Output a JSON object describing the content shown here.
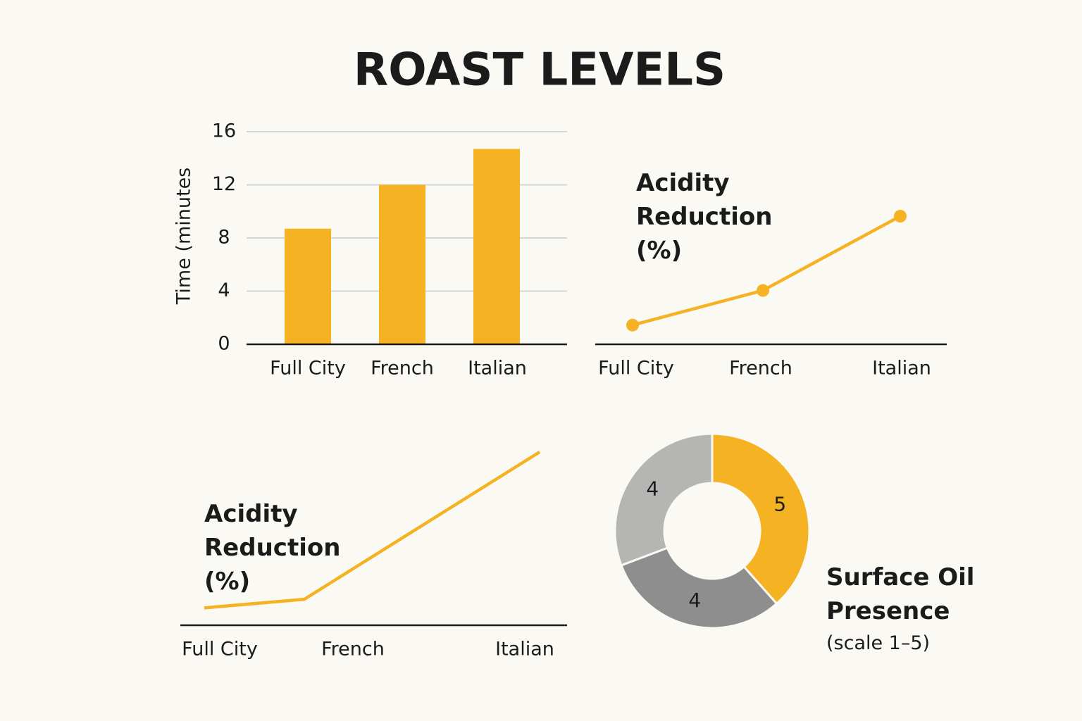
{
  "title": "ROAST LEVELS",
  "chart_data": [
    {
      "type": "bar",
      "y_label": "Time (minutes",
      "categories": [
        "Full City",
        "French",
        "Italian"
      ],
      "values": [
        8.7,
        12,
        14.7
      ],
      "color": "#f5b324",
      "ylim": [
        0,
        16
      ],
      "yticks": [
        0,
        4,
        8,
        12,
        16
      ],
      "grid": true
    },
    {
      "type": "line",
      "title": "Acidity Reduction (%)",
      "categories": [
        "Full City",
        "French",
        "Italian"
      ],
      "values": [
        1.5,
        4.2,
        10
      ],
      "color": "#f5b324",
      "markers": true
    },
    {
      "type": "line",
      "title": "Acidity Reduction (%)",
      "categories": [
        "Full City",
        "French",
        "Italian"
      ],
      "values": [
        1,
        1.5,
        10
      ],
      "color": "#f5b324",
      "markers": false
    },
    {
      "type": "pie",
      "title": "Surface Oil Presence",
      "subtitle": "(scale 1–5)",
      "values": [
        5,
        4,
        4
      ],
      "colors": [
        "#f5b324",
        "#8e8e8e",
        "#b5b5b3"
      ],
      "donut": true
    }
  ]
}
